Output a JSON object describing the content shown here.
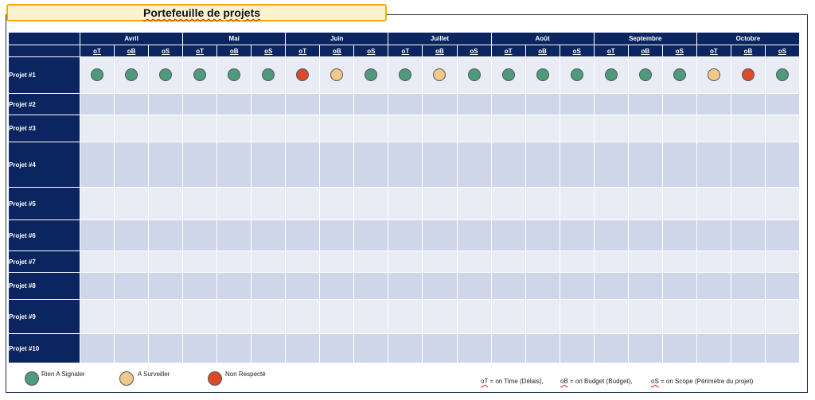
{
  "title": "Portefeuille de projets",
  "colors": {
    "green": "#4e9a7d",
    "amber": "#f0c88a",
    "red": "#d94b2b",
    "navy": "#0b2560"
  },
  "months": [
    "Avril",
    "Mai",
    "Juin",
    "Juillet",
    "Août",
    "Septembre",
    "Octobre"
  ],
  "sub_columns": [
    "oT",
    "oB",
    "oS"
  ],
  "projects": [
    {
      "name": "Projet #1",
      "status": [
        "green",
        "green",
        "green",
        "green",
        "green",
        "green",
        "red",
        "amber",
        "green",
        "green",
        "amber",
        "green",
        "green",
        "green",
        "green",
        "green",
        "green",
        "green",
        "amber",
        "red",
        "green"
      ]
    },
    {
      "name": "Projet #2",
      "status": []
    },
    {
      "name": "Projet #3",
      "status": []
    },
    {
      "name": "Projet #4",
      "status": []
    },
    {
      "name": "Projet #5",
      "status": []
    },
    {
      "name": "Projet #6",
      "status": []
    },
    {
      "name": "Projet #7",
      "status": []
    },
    {
      "name": "Projet #8",
      "status": []
    },
    {
      "name": "Projet #9",
      "status": []
    },
    {
      "name": "Projet #10",
      "status": []
    }
  ],
  "legend": {
    "green": "Rien A Signaler",
    "amber": "A Surveiller",
    "red": "Non Respecté",
    "ot_abbr": "oT",
    "ot_text": " = on Time (Délais),",
    "ob_abbr": "oB",
    "ob_text": " = on Budget (Budget),",
    "os_abbr": "oS",
    "os_text": " = on Scope (Périmètre du projet)"
  }
}
